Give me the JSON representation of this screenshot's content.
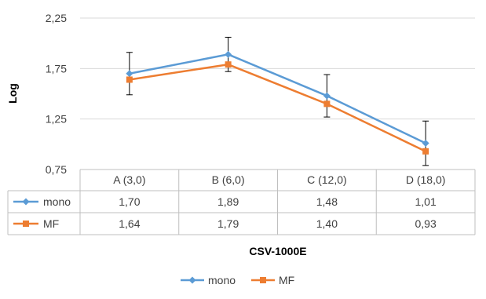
{
  "chart_data": {
    "type": "line",
    "categories": [
      "A (3,0)",
      "B (6,0)",
      "C (12,0)",
      "D (18,0)"
    ],
    "series": [
      {
        "name": "mono",
        "values": [
          1.7,
          1.89,
          1.48,
          1.01
        ],
        "labels": [
          "1,70",
          "1,89",
          "1,48",
          "1,01"
        ],
        "error": [
          0.21,
          0.17,
          0.21,
          0.22
        ],
        "color": "#5B9BD5",
        "marker": "diamond"
      },
      {
        "name": "MF",
        "values": [
          1.64,
          1.79,
          1.4,
          0.93
        ],
        "labels": [
          "1,64",
          "1,79",
          "1,40",
          "0,93"
        ],
        "color": "#ED7D31",
        "marker": "square"
      }
    ],
    "ylabel": "Log",
    "xlabel": "CSV-1000E",
    "ylim": [
      0.75,
      2.25
    ],
    "yticks": [
      0.75,
      1.25,
      1.75,
      2.25
    ],
    "ytick_labels": [
      "0,75",
      "1,25",
      "1,75",
      "2,25"
    ],
    "grid": true,
    "data_table": true,
    "legend": "bottom"
  }
}
